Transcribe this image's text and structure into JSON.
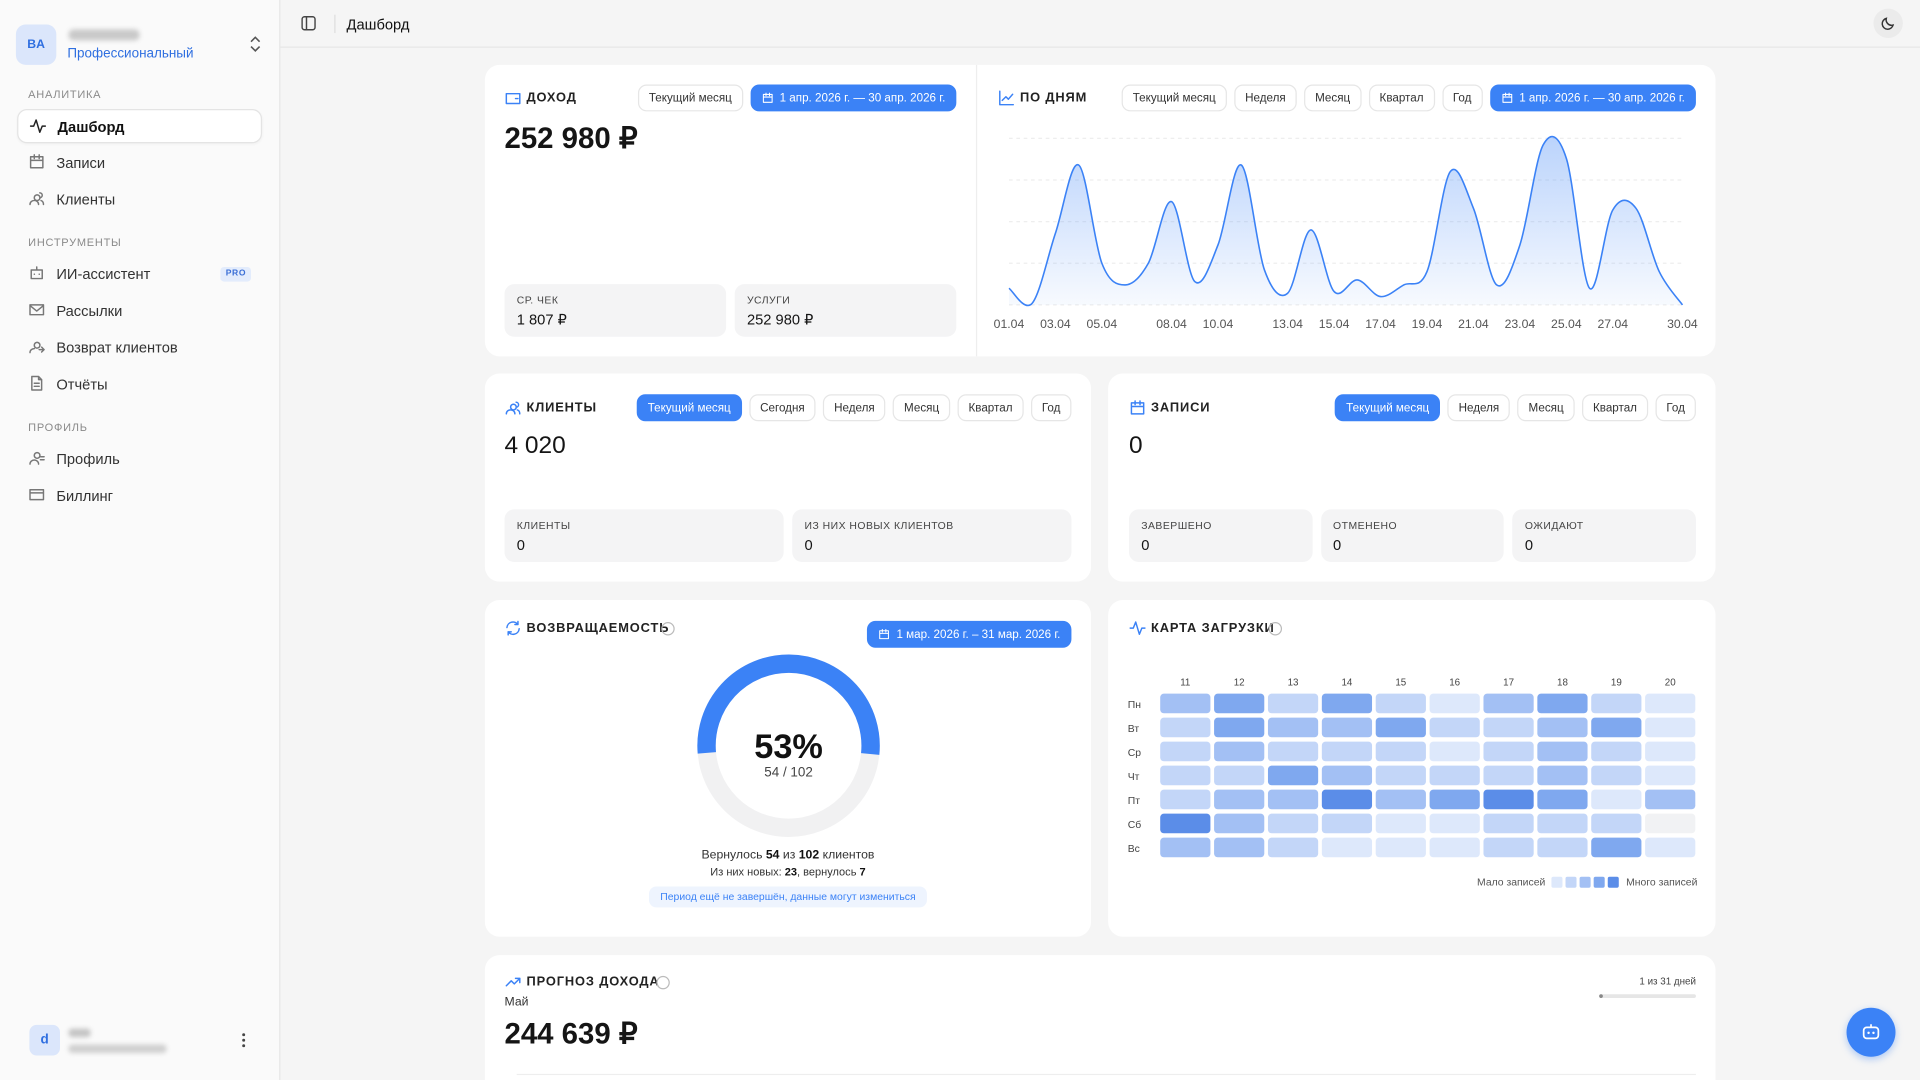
{
  "sidebar": {
    "account_initials": "BA",
    "plan": "Профессиональный",
    "sections": [
      {
        "title": "АНАЛИТИКА",
        "items": [
          "Дашборд",
          "Записи",
          "Клиенты"
        ]
      },
      {
        "title": "ИНСТРУМЕНТЫ",
        "items": [
          "ИИ-ассистент",
          "Рассылки",
          "Возврат клиентов",
          "Отчёты"
        ]
      },
      {
        "title": "ПРОФИЛЬ",
        "items": [
          "Профиль",
          "Биллинг"
        ]
      }
    ],
    "active_item": [
      0,
      0
    ],
    "badge": {
      "item": [
        1,
        0
      ],
      "text": "PRO"
    },
    "user_initial": "d"
  },
  "header": {
    "title": "Дашборд"
  },
  "income": {
    "title": "ДОХОД",
    "filters": [
      "Текущий месяц",
      "1 апр. 2026 г. — 30 апр. 2026 г."
    ],
    "active_filter": 1,
    "total": "252 980 ₽",
    "stats": [
      {
        "label": "СР. ЧЕК",
        "value": "1 807 ₽"
      },
      {
        "label": "УСЛУГИ",
        "value": "252 980 ₽"
      }
    ]
  },
  "daily": {
    "type": "area",
    "title": "ПО ДНЯМ",
    "filters": [
      "Текущий месяц",
      "Неделя",
      "Месяц",
      "Квартал",
      "Год",
      "1 апр. 2026 г. — 30 апр. 2026 г."
    ],
    "active_filter": 5,
    "x": [
      "01.04",
      null,
      "03.04",
      null,
      "05.04",
      null,
      null,
      "08.04",
      null,
      "10.04",
      null,
      null,
      "13.04",
      null,
      "15.04",
      null,
      "17.04",
      null,
      "19.04",
      null,
      "21.04",
      null,
      "23.04",
      null,
      "25.04",
      null,
      "27.04",
      null,
      null,
      "30.04"
    ],
    "values": [
      10,
      1,
      43,
      84,
      25,
      12,
      25,
      62,
      14,
      36,
      84,
      21,
      7,
      45,
      8,
      15,
      5,
      12,
      20,
      80,
      58,
      12,
      36,
      96,
      88,
      10,
      57,
      58,
      20,
      0
    ],
    "ylim": [
      0,
      100
    ],
    "grid_lines": [
      0,
      25,
      50,
      75,
      100
    ],
    "color": "#3b82f6"
  },
  "clients": {
    "title": "КЛИЕНТЫ",
    "filters": [
      "Текущий месяц",
      "Сегодня",
      "Неделя",
      "Месяц",
      "Квартал",
      "Год"
    ],
    "active_filter": 0,
    "total": "4 020",
    "stats": [
      {
        "label": "КЛИЕНТЫ",
        "value": "0"
      },
      {
        "label": "ИЗ НИХ НОВЫХ КЛИЕНТОВ",
        "value": "0"
      }
    ]
  },
  "records": {
    "title": "ЗАПИСИ",
    "filters": [
      "Текущий месяц",
      "Неделя",
      "Месяц",
      "Квартал",
      "Год"
    ],
    "active_filter": 0,
    "total": "0",
    "stats": [
      {
        "label": "ЗАВЕРШЕНО",
        "value": "0"
      },
      {
        "label": "ОТМЕНЕНО",
        "value": "0"
      },
      {
        "label": "ОЖИДАЮТ",
        "value": "0"
      }
    ]
  },
  "retention": {
    "type": "gauge",
    "title": "ВОЗВРАЩАЕМОСТЬ",
    "filter": "1 мар. 2026 г. – 31 мар. 2026 г.",
    "rate": {
      "value": 53,
      "label": "53%"
    },
    "ratio": "54 / 102",
    "summary": [
      "Вернулось ",
      "54",
      " из ",
      "102",
      " клиентов"
    ],
    "details": [
      "Из них новых: ",
      "23",
      ", вернулось ",
      "7"
    ],
    "note": "Период ещё не завершён, данные могут измениться",
    "color": "#3b82f6"
  },
  "load_map": {
    "type": "heatmap",
    "title": "КАРТА ЗАГРУЗКИ",
    "columns": [
      "11",
      "12",
      "13",
      "14",
      "15",
      "16",
      "17",
      "18",
      "19",
      "20"
    ],
    "rows": [
      "Пн",
      "Вт",
      "Ср",
      "Чт",
      "Пт",
      "Сб",
      "Вс"
    ],
    "values": [
      [
        3,
        4,
        2,
        4,
        2,
        1,
        3,
        4,
        2,
        1
      ],
      [
        2,
        4,
        3,
        3,
        4,
        2,
        2,
        3,
        4,
        1
      ],
      [
        2,
        3,
        2,
        2,
        2,
        1,
        2,
        3,
        2,
        1
      ],
      [
        2,
        2,
        4,
        3,
        2,
        2,
        2,
        3,
        2,
        1
      ],
      [
        2,
        3,
        3,
        5,
        3,
        4,
        5,
        4,
        1,
        3
      ],
      [
        5,
        3,
        2,
        2,
        1,
        1,
        2,
        2,
        2,
        0
      ],
      [
        3,
        3,
        2,
        1,
        1,
        1,
        2,
        2,
        4,
        1
      ]
    ],
    "scale_max": 5,
    "legend": {
      "low": "Мало записей",
      "high": "Много записей"
    }
  },
  "forecast": {
    "title": "ПРОГНОЗ ДОХОДА",
    "month": "Май",
    "value": "244 639 ₽",
    "progress": {
      "label": "1 из 31 дней",
      "done": 1,
      "total": 31
    }
  }
}
